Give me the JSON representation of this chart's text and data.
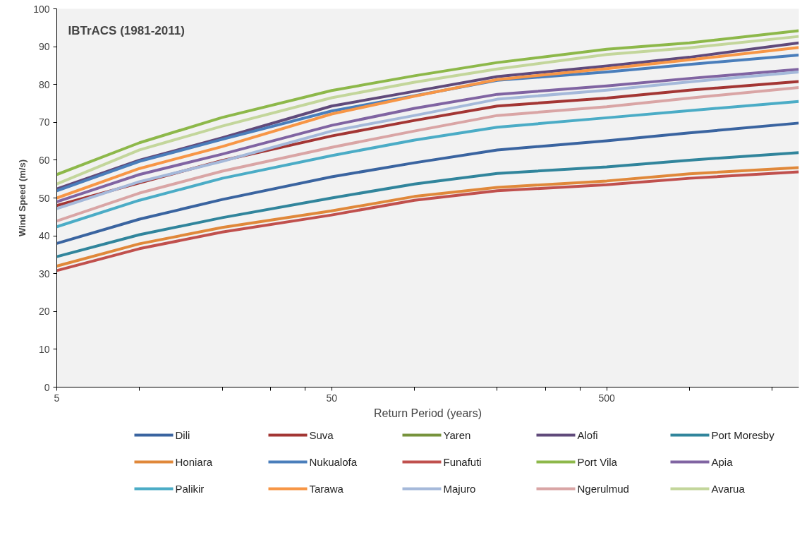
{
  "chart_data": {
    "type": "line",
    "title": "IBTrACS (1981-2011)",
    "xlabel": "Return Period (years)",
    "ylabel": "Wind Speed (m/s)",
    "x": [
      5,
      10,
      20,
      50,
      100,
      200,
      500,
      1000,
      2500
    ],
    "log": "x",
    "xlim": [
      5,
      2500
    ],
    "ylim": [
      0,
      100
    ],
    "xticks": [
      5,
      {
        "value": 10,
        "label": null
      },
      {
        "value": 20,
        "label": null
      },
      {
        "value": 30,
        "label": null
      },
      {
        "value": 40,
        "label": null
      },
      50,
      {
        "value": 100,
        "label": null
      },
      {
        "value": 200,
        "label": null
      },
      {
        "value": 300,
        "label": null
      },
      {
        "value": 400,
        "label": null
      },
      500,
      {
        "value": 1000,
        "label": null
      },
      {
        "value": 2000,
        "label": null
      }
    ],
    "yticks": [
      0,
      10,
      20,
      30,
      40,
      50,
      60,
      70,
      80,
      90,
      100
    ],
    "grid": false,
    "legend": "bottom",
    "marker": "none",
    "line_style": "solid",
    "series": [
      {
        "name": "Dili",
        "color": "#3a64a0",
        "values": [
          38,
          44.4,
          49.6,
          55.6,
          59.3,
          62.7,
          65.1,
          67.2,
          69.8
        ]
      },
      {
        "name": "Suva",
        "color": "#a33634",
        "values": [
          48,
          54,
          59.9,
          66.4,
          70.5,
          74.3,
          76.4,
          78.5,
          80.8
        ]
      },
      {
        "name": "Yaren",
        "color": "#77933c",
        "values": [
          null,
          null,
          null,
          null,
          null,
          null,
          null,
          null,
          null
        ]
      },
      {
        "name": "Alofi",
        "color": "#604a7b",
        "values": [
          52.4,
          60,
          65.9,
          74.3,
          78.2,
          82.1,
          84.9,
          87.2,
          91
        ]
      },
      {
        "name": "Port Moresby",
        "color": "#31859c",
        "values": [
          34.5,
          40.3,
          44.8,
          50,
          53.7,
          56.5,
          58.2,
          60,
          62
        ]
      },
      {
        "name": "Honiara",
        "color": "#e0883a",
        "values": [
          32,
          37.9,
          42.2,
          46.6,
          50.4,
          52.8,
          54.5,
          56.4,
          58
        ]
      },
      {
        "name": "Nukualofa",
        "color": "#4a7ebb",
        "values": [
          51.9,
          59.7,
          65.5,
          73,
          77,
          81.1,
          83.3,
          85.3,
          87.8
        ]
      },
      {
        "name": "Funafuti",
        "color": "#c0504d",
        "values": [
          30.8,
          36.6,
          41,
          45.5,
          49.4,
          51.9,
          53.5,
          55.2,
          56.9
        ]
      },
      {
        "name": "Port Vila",
        "color": "#8db84a",
        "values": [
          56.2,
          64.6,
          71.3,
          78.4,
          82.3,
          85.8,
          89.3,
          91,
          94.2
        ]
      },
      {
        "name": "Apia",
        "color": "#8064a2",
        "values": [
          49,
          56.2,
          61.6,
          69.2,
          73.7,
          77.4,
          79.6,
          81.6,
          84
        ]
      },
      {
        "name": "Palikir",
        "color": "#4bacc6",
        "values": [
          42.4,
          49.4,
          55.2,
          61.2,
          65.3,
          68.7,
          71.2,
          73.1,
          75.5
        ]
      },
      {
        "name": "Tarawa",
        "color": "#f79646",
        "values": [
          50,
          57.8,
          63.6,
          72.2,
          76.9,
          81.3,
          84.2,
          86.5,
          89.8
        ]
      },
      {
        "name": "Majuro",
        "color": "#a5b9da",
        "values": [
          47.2,
          54.3,
          59.7,
          67.7,
          71.8,
          76.1,
          78.5,
          80.7,
          83.3
        ]
      },
      {
        "name": "Ngerulmud",
        "color": "#d9a5a5",
        "values": [
          43.9,
          51.3,
          57.1,
          63.4,
          67.7,
          71.8,
          74.1,
          76.4,
          79.2
        ]
      },
      {
        "name": "Avarua",
        "color": "#c3d69b",
        "values": [
          53.7,
          62.7,
          69,
          76.5,
          80.6,
          84.1,
          87.9,
          89.7,
          92.7
        ]
      }
    ]
  }
}
